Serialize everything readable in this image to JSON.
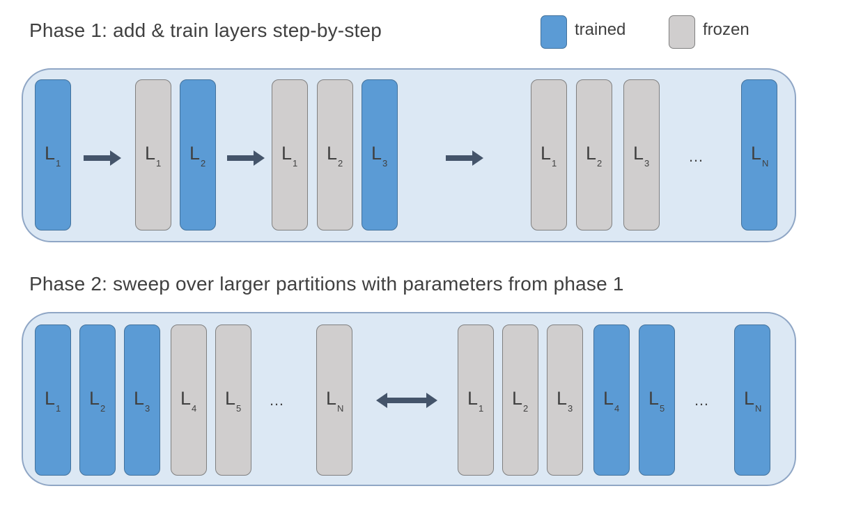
{
  "phase1": {
    "title": "Phase 1: add & train layers step-by-step",
    "groups": [
      [
        {
          "main": "L",
          "sub": "1",
          "state": "trained"
        }
      ],
      [
        {
          "main": "L",
          "sub": "1",
          "state": "frozen"
        },
        {
          "main": "L",
          "sub": "2",
          "state": "trained"
        }
      ],
      [
        {
          "main": "L",
          "sub": "1",
          "state": "frozen"
        },
        {
          "main": "L",
          "sub": "2",
          "state": "frozen"
        },
        {
          "main": "L",
          "sub": "3",
          "state": "trained"
        }
      ],
      [
        {
          "main": "L",
          "sub": "1",
          "state": "frozen"
        },
        {
          "main": "L",
          "sub": "2",
          "state": "frozen"
        },
        {
          "main": "L",
          "sub": "3",
          "state": "frozen"
        },
        {
          "main": "L",
          "sub": "N",
          "state": "trained"
        }
      ]
    ],
    "ellipsis": "…"
  },
  "phase2": {
    "title": "Phase 2: sweep over larger partitions with parameters from phase 1",
    "left": [
      {
        "main": "L",
        "sub": "1",
        "state": "trained"
      },
      {
        "main": "L",
        "sub": "2",
        "state": "trained"
      },
      {
        "main": "L",
        "sub": "3",
        "state": "trained"
      },
      {
        "main": "L",
        "sub": "4",
        "state": "frozen"
      },
      {
        "main": "L",
        "sub": "5",
        "state": "frozen"
      },
      {
        "main": "L",
        "sub": "N",
        "state": "frozen"
      }
    ],
    "right": [
      {
        "main": "L",
        "sub": "1",
        "state": "frozen"
      },
      {
        "main": "L",
        "sub": "2",
        "state": "frozen"
      },
      {
        "main": "L",
        "sub": "3",
        "state": "frozen"
      },
      {
        "main": "L",
        "sub": "4",
        "state": "trained"
      },
      {
        "main": "L",
        "sub": "5",
        "state": "trained"
      },
      {
        "main": "L",
        "sub": "N",
        "state": "trained"
      }
    ],
    "ellipsis": "…"
  },
  "legend": {
    "trained_label": "trained",
    "frozen_label": "frozen"
  },
  "colors": {
    "trained": "#5b9bd5",
    "frozen": "#d0cece",
    "panel": "#dce8f4",
    "arrow": "#44546a"
  }
}
